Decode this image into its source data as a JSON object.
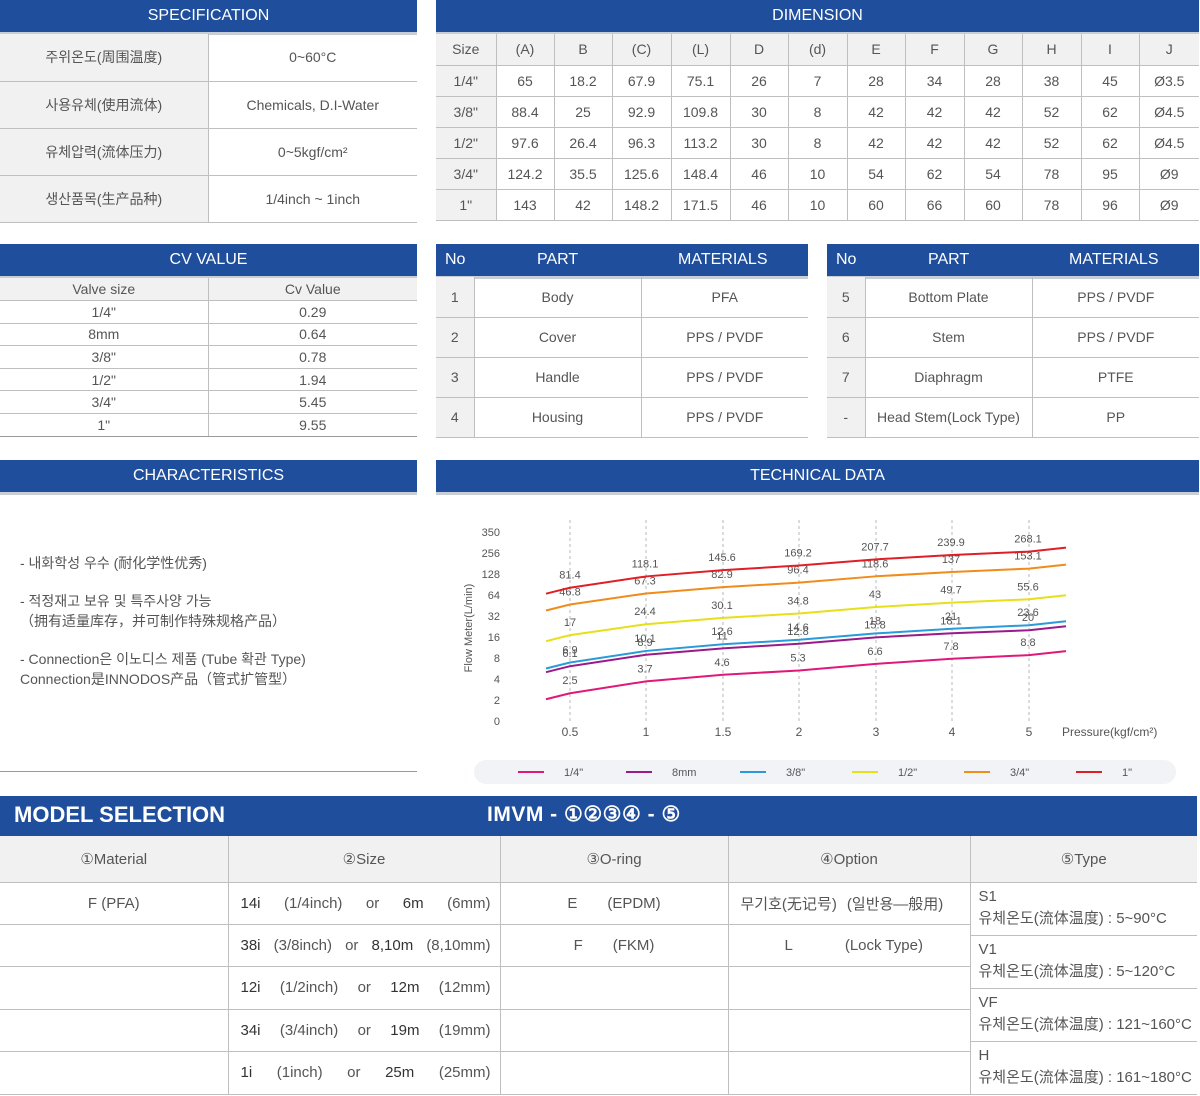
{
  "specification": {
    "title": "SPECIFICATION",
    "rows": [
      {
        "key": "주위온도(周围温度)",
        "value": "0~60°C"
      },
      {
        "key": "사용유체(使用流体)",
        "value": "Chemicals, D.I-Water"
      },
      {
        "key": "유체압력(流体压力)",
        "value": "0~5kgf/cm²"
      },
      {
        "key": "생산품목(生产品种)",
        "value": "1/4inch ~ 1inch"
      }
    ]
  },
  "dimension": {
    "title": "DIMENSION",
    "headers": [
      "Size",
      "(A)",
      "B",
      "(C)",
      "(L)",
      "D",
      "(d)",
      "E",
      "F",
      "G",
      "H",
      "I",
      "J"
    ],
    "rows": [
      [
        "1/4\"",
        "65",
        "18.2",
        "67.9",
        "75.1",
        "26",
        "7",
        "28",
        "34",
        "28",
        "38",
        "45",
        "Ø3.5"
      ],
      [
        "3/8\"",
        "88.4",
        "25",
        "92.9",
        "109.8",
        "30",
        "8",
        "42",
        "42",
        "42",
        "52",
        "62",
        "Ø4.5"
      ],
      [
        "1/2\"",
        "97.6",
        "26.4",
        "96.3",
        "113.2",
        "30",
        "8",
        "42",
        "42",
        "42",
        "52",
        "62",
        "Ø4.5"
      ],
      [
        "3/4\"",
        "124.2",
        "35.5",
        "125.6",
        "148.4",
        "46",
        "10",
        "54",
        "62",
        "54",
        "78",
        "95",
        "Ø9"
      ],
      [
        "1\"",
        "143",
        "42",
        "148.2",
        "171.5",
        "46",
        "10",
        "60",
        "66",
        "60",
        "78",
        "96",
        "Ø9"
      ]
    ]
  },
  "cv": {
    "title": "CV VALUE",
    "headers": [
      "Valve size",
      "Cv Value"
    ],
    "rows": [
      [
        "1/4\"",
        "0.29"
      ],
      [
        "8mm",
        "0.64"
      ],
      [
        "3/8\"",
        "0.78"
      ],
      [
        "1/2\"",
        "1.94"
      ],
      [
        "3/4\"",
        "5.45"
      ],
      [
        "1\"",
        "9.55"
      ]
    ]
  },
  "parts_left": {
    "headers": [
      "No",
      "PART",
      "MATERIALS"
    ],
    "rows": [
      [
        "1",
        "Body",
        "PFA"
      ],
      [
        "2",
        "Cover",
        "PPS / PVDF"
      ],
      [
        "3",
        "Handle",
        "PPS / PVDF"
      ],
      [
        "4",
        "Housing",
        "PPS / PVDF"
      ]
    ]
  },
  "parts_right": {
    "headers": [
      "No",
      "PART",
      "MATERIALS"
    ],
    "rows": [
      [
        "5",
        "Bottom Plate",
        "PPS / PVDF"
      ],
      [
        "6",
        "Stem",
        "PPS / PVDF"
      ],
      [
        "7",
        "Diaphragm",
        "PTFE"
      ],
      [
        "-",
        "Head Stem(Lock Type)",
        "PP"
      ]
    ]
  },
  "characteristics": {
    "title": "CHARACTERISTICS",
    "items": [
      "- 내화학성 우수 (耐化学性优秀)",
      "- 적정재고 보유 및 특주사양 가능\n  （拥有适量库存，并可制作特殊规格产品）",
      "- Connection은 이노디스 제품 (Tube 확관 Type)\n  Connection是INNODOS产品（管式扩管型）"
    ]
  },
  "technical_data": {
    "title": "TECHNICAL DATA"
  },
  "chart_data": {
    "type": "line",
    "title": "",
    "xlabel": "Pressure(kgf/cm²)",
    "ylabel": "Flow Meter(L/min)",
    "x": [
      0.5,
      1,
      1.5,
      2,
      3,
      4,
      5
    ],
    "yscale": "log2",
    "yticks": [
      "0",
      "2",
      "4",
      "8",
      "16",
      "32",
      "64",
      "128",
      "256",
      "350"
    ],
    "grid": "vertical-dashed",
    "legend": "bottom",
    "series": [
      {
        "name": "1/4\"",
        "color": "#e0187a",
        "values": [
          2.5,
          3.7,
          4.6,
          5.3,
          6.6,
          7.8,
          8.8
        ]
      },
      {
        "name": "8mm",
        "color": "#9b1a8a",
        "values": [
          6.1,
          8.9,
          11,
          12.8,
          15.8,
          18.1,
          20
        ]
      },
      {
        "name": "3/8\"",
        "color": "#2a9ad8",
        "values": [
          6.9,
          10.1,
          12.6,
          14.6,
          18,
          21,
          23.6
        ]
      },
      {
        "name": "1/2\"",
        "color": "#e6e01a",
        "values": [
          17,
          24.4,
          30.1,
          34.8,
          43,
          49.7,
          55.6
        ]
      },
      {
        "name": "3/4\"",
        "color": "#f08c1a",
        "values": [
          46.8,
          67.3,
          82.9,
          96.4,
          118.6,
          137,
          153.1
        ]
      },
      {
        "name": "1\"",
        "color": "#e01e26",
        "values": [
          81.4,
          118.1,
          145.6,
          169.2,
          207.7,
          239.9,
          268.1
        ]
      }
    ]
  },
  "model_selection": {
    "title": "MODEL SELECTION",
    "code": "IMVM - ①②③④ - ⑤",
    "headers": [
      "①Material",
      "②Size",
      "③O-ring",
      "④Option",
      "⑤Type"
    ],
    "material": [
      "F (PFA)"
    ],
    "sizes": [
      [
        "14i",
        "(1/4inch)",
        "or",
        "6m",
        "(6mm)"
      ],
      [
        "38i",
        "(3/8inch)",
        "or",
        "8,10m",
        "(8,10mm)"
      ],
      [
        "12i",
        "(1/2inch)",
        "or",
        "12m",
        "(12mm)"
      ],
      [
        "34i",
        "(3/4inch)",
        "or",
        "19m",
        "(19mm)"
      ],
      [
        "1i",
        "(1inch)",
        "or",
        "25m",
        "(25mm)"
      ]
    ],
    "orings": [
      [
        "E",
        "(EPDM)"
      ],
      [
        "F",
        "(FKM)"
      ]
    ],
    "options": [
      [
        "무기호(无记号)",
        "(일반용—般用)"
      ],
      [
        "L",
        "(Lock Type)"
      ]
    ],
    "types": [
      {
        "code": "S1",
        "desc": "유체온도(流体温度) : 5~90°C"
      },
      {
        "code": "V1",
        "desc": "유체온도(流体温度) : 5~120°C"
      },
      {
        "code": "VF",
        "desc": "유체온도(流体温度) : 121~160°C"
      },
      {
        "code": "H",
        "desc": "유체온도(流体温度) : 161~180°C"
      }
    ]
  }
}
